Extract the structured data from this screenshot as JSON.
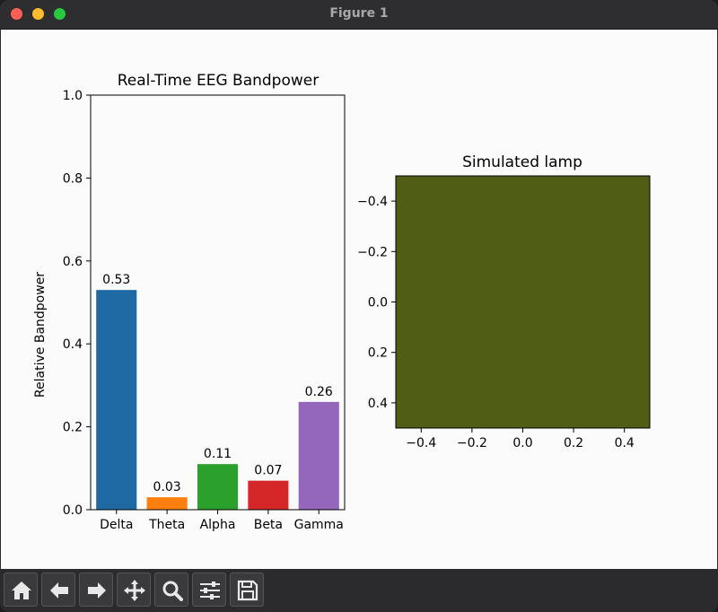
{
  "window": {
    "title": "Figure 1"
  },
  "toolbar": {
    "buttons": [
      {
        "name": "home-button",
        "icon": "home-icon"
      },
      {
        "name": "back-button",
        "icon": "arrow-left-icon"
      },
      {
        "name": "forward-button",
        "icon": "arrow-right-icon"
      },
      {
        "name": "pan-button",
        "icon": "move-icon"
      },
      {
        "name": "zoom-button",
        "icon": "magnifier-icon"
      },
      {
        "name": "configure-subplots-button",
        "icon": "sliders-icon"
      },
      {
        "name": "save-button",
        "icon": "floppy-disk-icon"
      }
    ]
  },
  "chart_data": [
    {
      "type": "bar",
      "title": "Real-Time EEG Bandpower",
      "xlabel": "",
      "ylabel": "Relative Bandpower",
      "ylim": [
        0,
        1
      ],
      "yticks": [
        "0.0",
        "0.2",
        "0.4",
        "0.6",
        "0.8",
        "1.0"
      ],
      "categories": [
        "Delta",
        "Theta",
        "Alpha",
        "Beta",
        "Gamma"
      ],
      "values": [
        0.53,
        0.03,
        0.11,
        0.07,
        0.26
      ],
      "value_labels": [
        "0.53",
        "0.03",
        "0.11",
        "0.07",
        "0.26"
      ],
      "colors": [
        "#1f6aa5",
        "#ff7f0e",
        "#2ca02c",
        "#d62728",
        "#9467bd"
      ]
    },
    {
      "type": "heatmap",
      "title": "Simulated lamp",
      "xlim": [
        -0.5,
        0.5
      ],
      "ylim": [
        0.5,
        -0.5
      ],
      "xticks": [
        "−0.4",
        "−0.2",
        "0.0",
        "0.2",
        "0.4"
      ],
      "yticks": [
        "−0.4",
        "−0.2",
        "0.0",
        "0.2",
        "0.4"
      ],
      "fill_color": "#505d15"
    }
  ]
}
